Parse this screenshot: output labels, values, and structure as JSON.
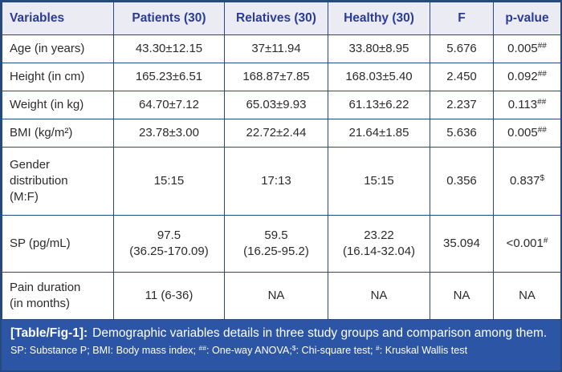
{
  "colors": {
    "border": "#254a7e",
    "header_bg": "#eaebf3",
    "header_text": "#2b3b96",
    "caption_bg": "#2c56a5",
    "body_text": "#2b2b2b"
  },
  "table": {
    "headers": {
      "variable": "Variables",
      "patients": "Patients (30)",
      "relatives": "Relatives (30)",
      "healthy": "Healthy (30)",
      "f": "F",
      "p": "p-value"
    },
    "rows": [
      {
        "variable": "Age (in years)",
        "patients": "43.30±12.15",
        "relatives": "37±11.94",
        "healthy": "33.80±8.95",
        "f": "5.676",
        "p": "0.005",
        "p_sup": "##"
      },
      {
        "variable": "Height (in cm)",
        "patients": "165.23±6.51",
        "relatives": "168.87±7.85",
        "healthy": "168.03±5.40",
        "f": "2.450",
        "p": "0.092",
        "p_sup": "##"
      },
      {
        "variable": "Weight (in kg)",
        "patients": "64.70±7.12",
        "relatives": "65.03±9.93",
        "healthy": "61.13±6.22",
        "f": "2.237",
        "p": "0.113",
        "p_sup": "##"
      },
      {
        "variable": "BMI (kg/m²)",
        "patients": "23.78±3.00",
        "relatives": "22.72±2.44",
        "healthy": "21.64±1.85",
        "f": "5.636",
        "p": "0.005",
        "p_sup": "##"
      },
      {
        "variable": "Gender\ndistribution\n(M:F)",
        "patients": "15:15",
        "relatives": "17:13",
        "healthy": "15:15",
        "f": "0.356",
        "p": "0.837",
        "p_sup": "$"
      },
      {
        "variable": "SP (pg/mL)",
        "patients": "97.5\n(36.25-170.09)",
        "relatives": "59.5\n(16.25-95.2)",
        "healthy": "23.22\n(16.14-32.04)",
        "f": "35.094",
        "p": "<0.001",
        "p_sup": "#"
      },
      {
        "variable": "Pain duration\n(in months)",
        "patients": "11 (6-36)",
        "relatives": "NA",
        "healthy": "NA",
        "f": "NA",
        "p": "NA",
        "p_sup": ""
      }
    ]
  },
  "caption": {
    "label": "[Table/Fig-1]:",
    "text": "Demographic variables details in three study groups and comparison among them."
  },
  "footnote": {
    "seg1": "SP: Substance P; BMI: Body mass index; ",
    "sup1": "##",
    "seg2": ": One-way ANOVA;",
    "sup2": "$",
    "seg3": ": Chi-square test; ",
    "sup3": "#",
    "seg4": ": Kruskal Wallis test"
  }
}
